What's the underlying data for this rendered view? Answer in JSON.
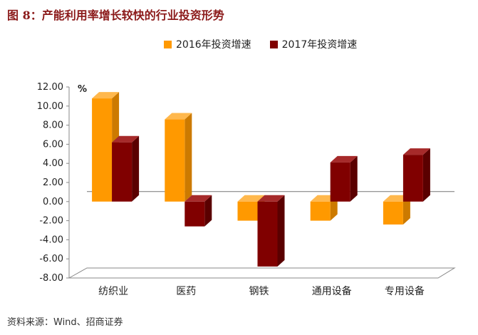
{
  "figure_title": "图 8：产能利用率增长较快的行业投资形势",
  "source": "资料来源：Wind、招商证券",
  "chart_data": {
    "type": "bar",
    "categories": [
      "纺织业",
      "医药",
      "钢铁",
      "通用设备",
      "专用设备"
    ],
    "series": [
      {
        "name": "2016年投资增速",
        "values": [
          10.8,
          8.6,
          -2.0,
          -2.0,
          -2.4
        ],
        "color": "#ff9900"
      },
      {
        "name": "2017年投资增速",
        "values": [
          6.2,
          -2.6,
          -6.8,
          4.1,
          4.9
        ],
        "color": "#800000"
      }
    ],
    "unit": "%",
    "ylim": [
      -8,
      12
    ],
    "yticks": [
      "12.00",
      "10.00",
      "8.00",
      "6.00",
      "4.00",
      "2.00",
      "0.00",
      "-2.00",
      "-4.00",
      "-6.00",
      "-8.00"
    ],
    "legend_position": "top",
    "grid": false
  }
}
